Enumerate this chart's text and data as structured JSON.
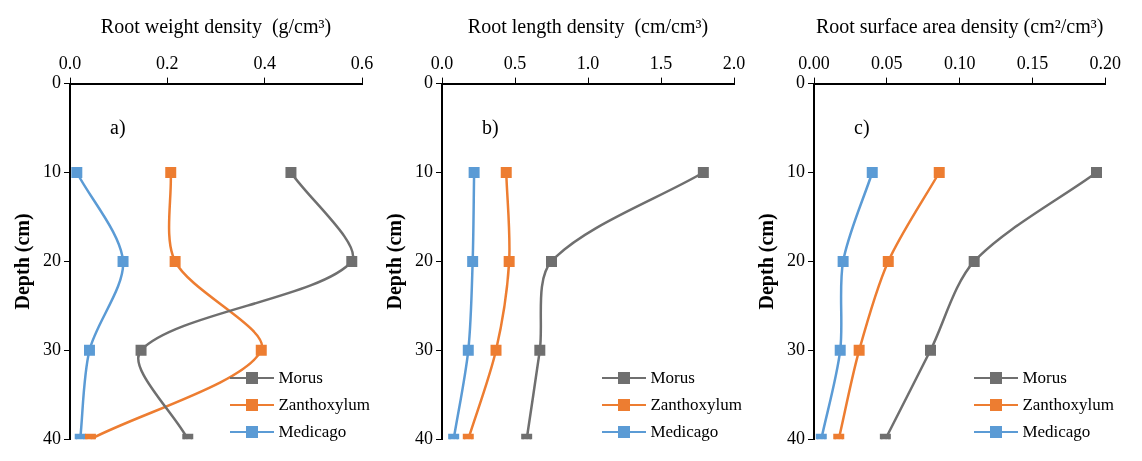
{
  "chart_data": [
    {
      "type": "line",
      "xlabel": "Root weight density  (g/cm³)",
      "ylabel": "Depth (cm)",
      "annotations": [
        "a)"
      ],
      "xlim": [
        0,
        0.6
      ],
      "xticks": [
        {
          "value": 0,
          "label": "0.0"
        },
        {
          "value": 0.2,
          "label": "0.2"
        },
        {
          "value": 0.4,
          "label": "0.4"
        },
        {
          "value": 0.6,
          "label": "0.6"
        }
      ],
      "ylim": [
        40,
        0
      ],
      "yticks": [
        0,
        10,
        20,
        30,
        40
      ],
      "marker": "square",
      "legend": "bottom right",
      "grid": false,
      "series": [
        {
          "name": "Morus",
          "color": "#6f6f6f",
          "x": [
            0.454,
            0.579,
            0.146,
            0.242
          ],
          "values": [
            10,
            20,
            30,
            40
          ]
        },
        {
          "name": "Zanthoxylum",
          "color": "#ed7d31",
          "x": [
            0.207,
            0.216,
            0.393,
            0.042
          ],
          "values": [
            10,
            20,
            30,
            40
          ]
        },
        {
          "name": "Medicago",
          "color": "#5b9bd5",
          "x": [
            0.014,
            0.109,
            0.04,
            0.021
          ],
          "values": [
            10,
            20,
            30,
            40
          ]
        }
      ]
    },
    {
      "type": "line",
      "xlabel": "Root length density  (cm/cm³)",
      "ylabel": "Depth (cm)",
      "annotations": [
        "b)"
      ],
      "xlim": [
        0,
        2
      ],
      "xticks": [
        {
          "value": 0,
          "label": "0.0"
        },
        {
          "value": 0.5,
          "label": "0.5"
        },
        {
          "value": 1,
          "label": "1.0"
        },
        {
          "value": 1.5,
          "label": "1.5"
        },
        {
          "value": 2,
          "label": "2.0"
        }
      ],
      "ylim": [
        40,
        0
      ],
      "yticks": [
        0,
        10,
        20,
        30,
        40
      ],
      "marker": "square",
      "legend": "bottom right",
      "grid": false,
      "series": [
        {
          "name": "Morus",
          "color": "#6f6f6f",
          "x": [
            1.79,
            0.75,
            0.67,
            0.58
          ],
          "values": [
            10,
            20,
            30,
            40
          ]
        },
        {
          "name": "Zanthoxylum",
          "color": "#ed7d31",
          "x": [
            0.44,
            0.46,
            0.37,
            0.18
          ],
          "values": [
            10,
            20,
            30,
            40
          ]
        },
        {
          "name": "Medicago",
          "color": "#5b9bd5",
          "x": [
            0.22,
            0.21,
            0.18,
            0.08
          ],
          "values": [
            10,
            20,
            30,
            40
          ]
        }
      ]
    },
    {
      "type": "line",
      "xlabel": "Root surface area density (cm²/cm³)",
      "ylabel": "Depth (cm)",
      "annotations": [
        "c)"
      ],
      "xlim": [
        0,
        0.2
      ],
      "xticks": [
        {
          "value": 0,
          "label": "0.00"
        },
        {
          "value": 0.05,
          "label": "0.05"
        },
        {
          "value": 0.1,
          "label": "0.10"
        },
        {
          "value": 0.15,
          "label": "0.15"
        },
        {
          "value": 0.2,
          "label": "0.20"
        }
      ],
      "ylim": [
        40,
        0
      ],
      "yticks": [
        0,
        10,
        20,
        30,
        40
      ],
      "marker": "square",
      "legend": "bottom right",
      "grid": false,
      "series": [
        {
          "name": "Morus",
          "color": "#6f6f6f",
          "x": [
            0.194,
            0.11,
            0.08,
            0.049
          ],
          "values": [
            10,
            20,
            30,
            40
          ]
        },
        {
          "name": "Zanthoxylum",
          "color": "#ed7d31",
          "x": [
            0.086,
            0.051,
            0.031,
            0.017
          ],
          "values": [
            10,
            20,
            30,
            40
          ]
        },
        {
          "name": "Medicago",
          "color": "#5b9bd5",
          "x": [
            0.04,
            0.02,
            0.018,
            0.005
          ],
          "values": [
            10,
            20,
            30,
            40
          ]
        }
      ]
    }
  ]
}
